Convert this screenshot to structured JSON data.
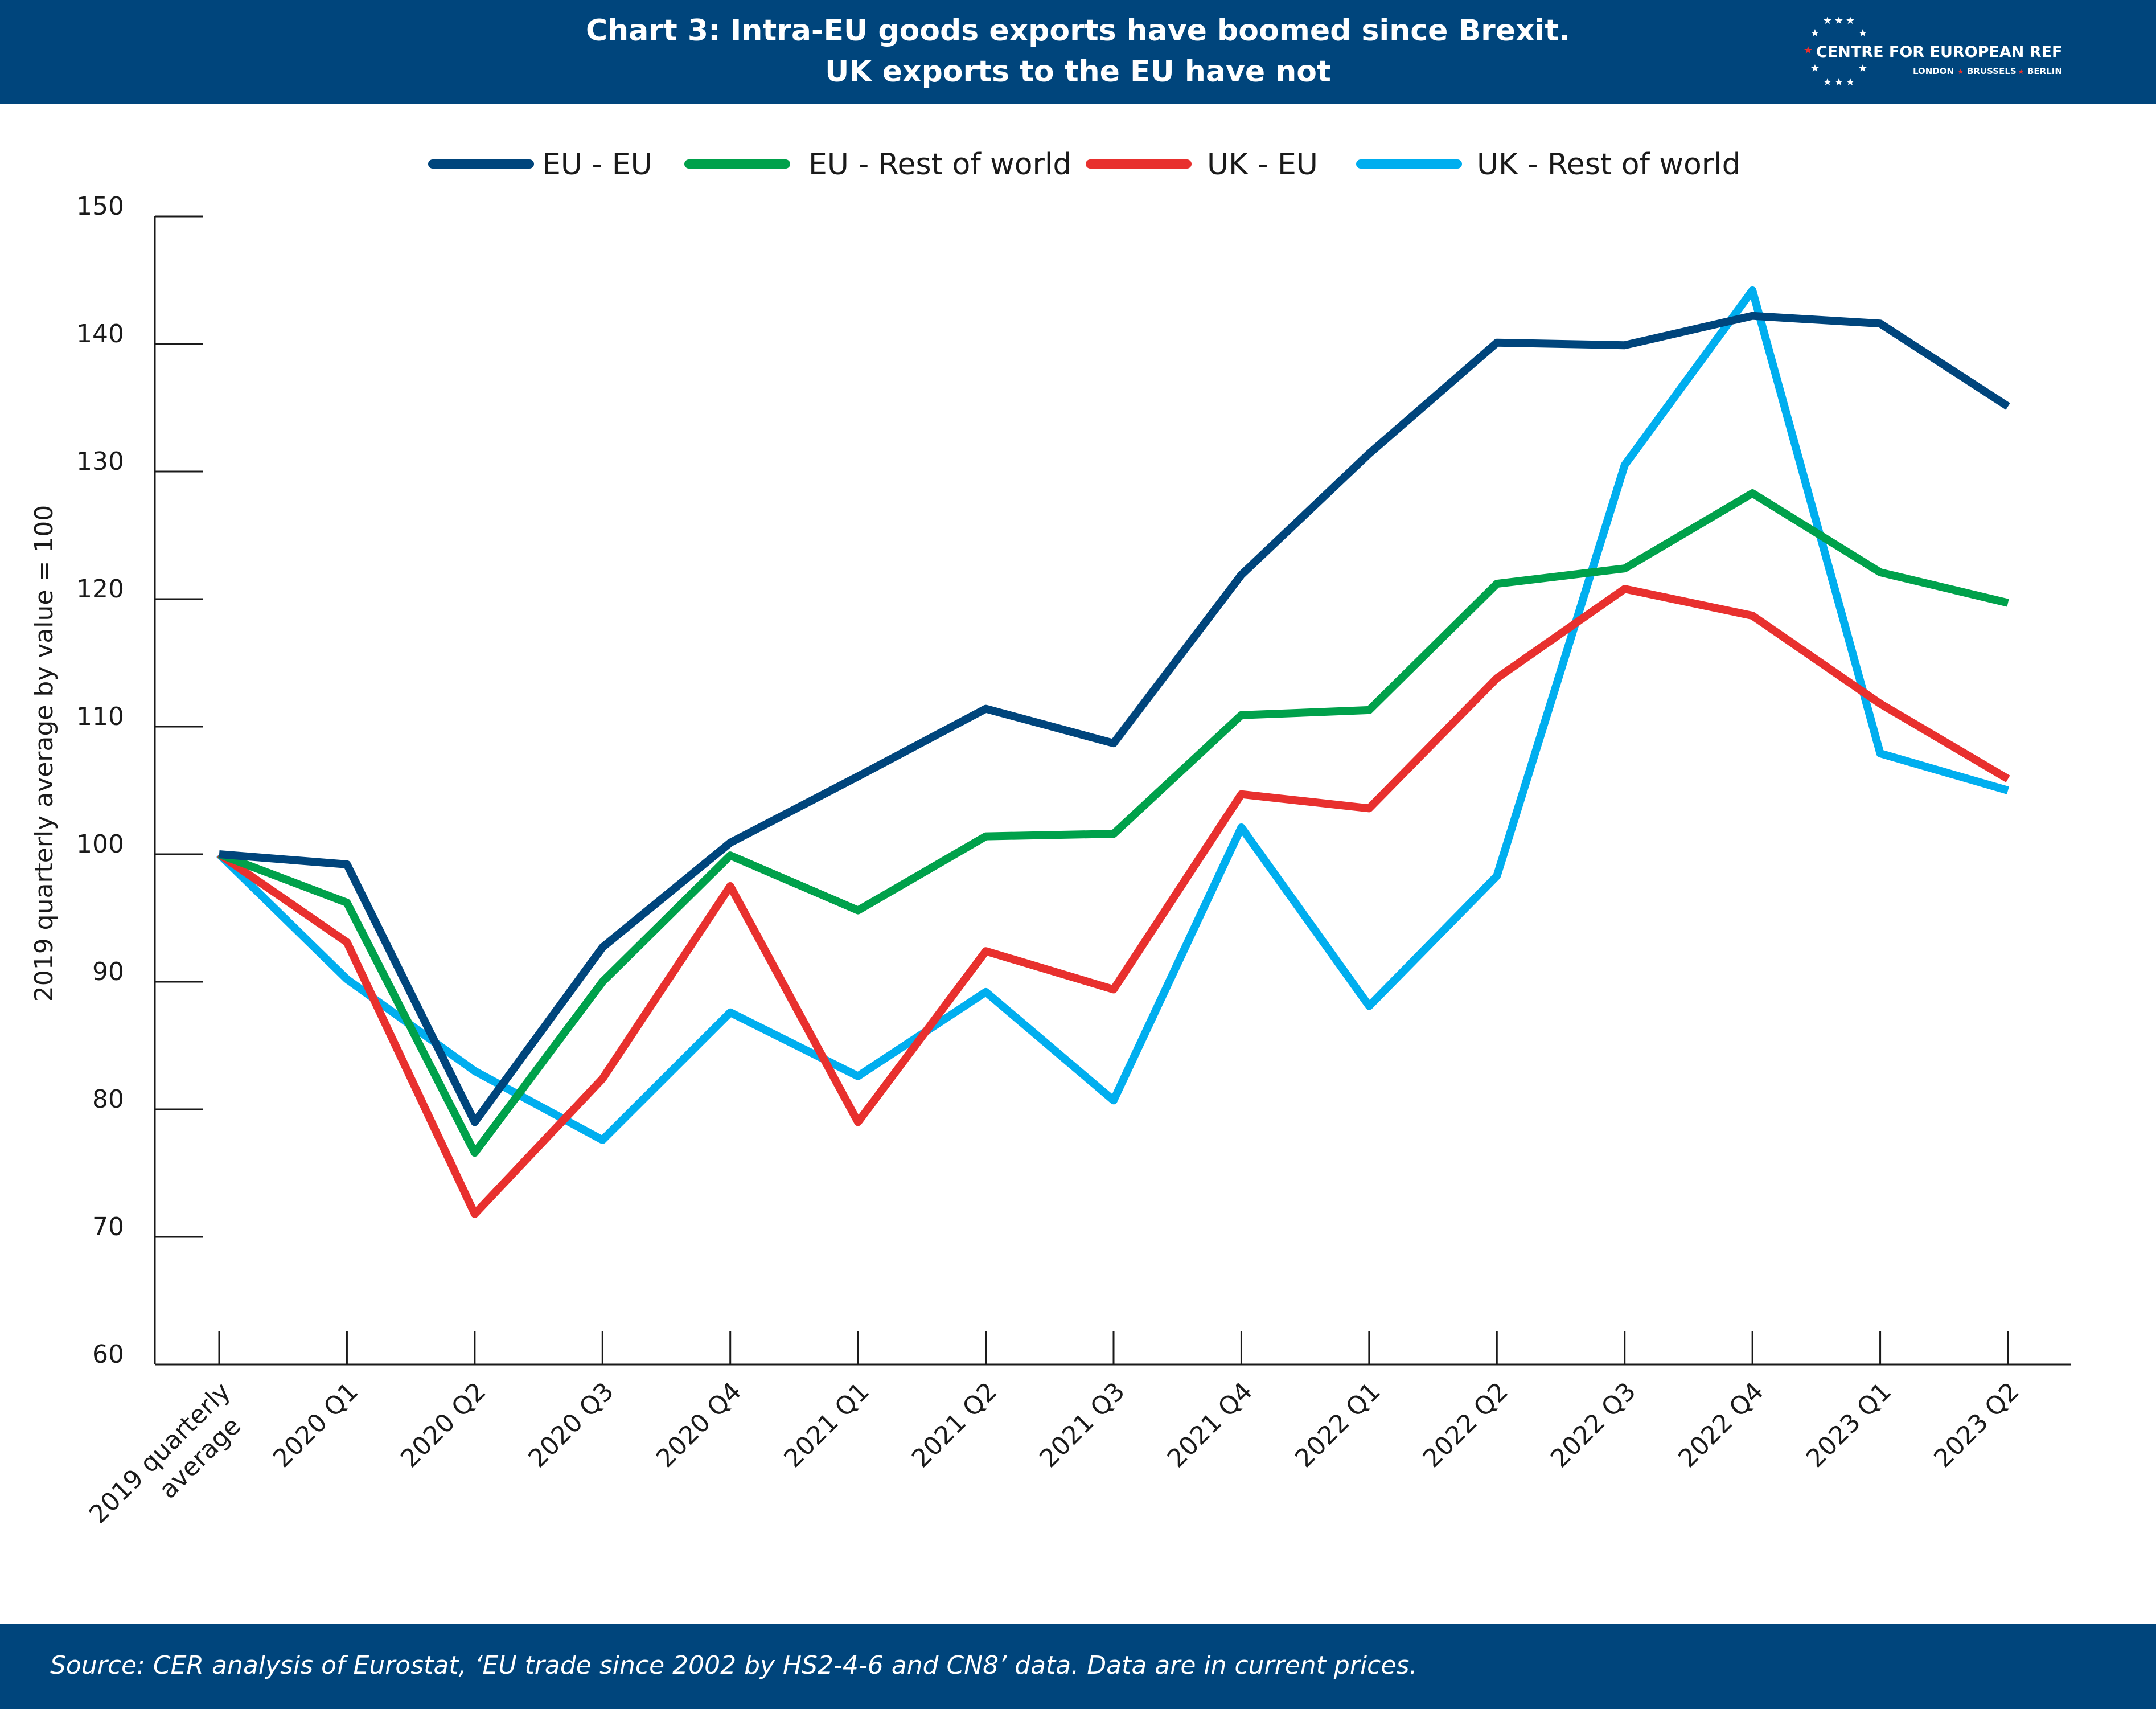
{
  "header": {
    "title_line1": "Chart 3: Intra-EU goods exports have boomed since Brexit.",
    "title_line2": "UK exports to the EU have not",
    "logo_name": "CENTRE FOR EUROPEAN REFORM",
    "logo_cities": [
      "LONDON",
      "BRUSSELS",
      "BERLIN"
    ],
    "color": "#00457c"
  },
  "footer": {
    "source": "Source: CER analysis of Eurostat, ‘EU trade since 2002 by HS2-4-6 and CN8’ data. Data are in current prices."
  },
  "chart_data": {
    "type": "line",
    "title": "Chart 3: Intra-EU goods exports have boomed since Brexit. UK exports to the EU have not",
    "xlabel": "",
    "ylabel": "2019 quarterly average by value = 100",
    "ylim": [
      60,
      150
    ],
    "yticks": [
      60,
      70,
      80,
      90,
      100,
      110,
      120,
      130,
      140,
      150
    ],
    "grid": false,
    "legend_position": "top",
    "categories": [
      "2019 quarterly average",
      "2020 Q1",
      "2020 Q2",
      "2020 Q3",
      "2020 Q4",
      "2021 Q1",
      "2021 Q2",
      "2021 Q3",
      "2021 Q4",
      "2022 Q1",
      "2022 Q2",
      "2022 Q3",
      "2022 Q4",
      "2023 Q1",
      "2023 Q2"
    ],
    "category_lines": [
      [
        "2019 quarterly",
        "average"
      ],
      [
        "2020 Q1"
      ],
      [
        "2020 Q2"
      ],
      [
        "2020 Q3"
      ],
      [
        "2020 Q4"
      ],
      [
        "2021 Q1"
      ],
      [
        "2021 Q2"
      ],
      [
        "2021 Q3"
      ],
      [
        "2021 Q4"
      ],
      [
        "2022 Q1"
      ],
      [
        "2022 Q2"
      ],
      [
        "2022 Q3"
      ],
      [
        "2022 Q4"
      ],
      [
        "2023 Q1"
      ],
      [
        "2023 Q2"
      ]
    ],
    "series": [
      {
        "name": "EU - EU",
        "color": "#00457c",
        "values": [
          100,
          99.2,
          79,
          92.7,
          100.9,
          106.1,
          111.4,
          108.7,
          121.9,
          131.4,
          140.1,
          139.9,
          142.2,
          141.6,
          135.1
        ]
      },
      {
        "name": "EU - Rest of world",
        "color": "#00a14b",
        "values": [
          100,
          96.2,
          76.6,
          90,
          99.9,
          95.6,
          101.4,
          101.6,
          110.9,
          111.3,
          121.2,
          122.4,
          128.3,
          122.1,
          119.7
        ]
      },
      {
        "name": "UK - EU",
        "color": "#e8302e",
        "values": [
          100,
          93.1,
          71.8,
          82.4,
          97.5,
          79,
          92.4,
          89.4,
          104.7,
          103.6,
          113.8,
          120.8,
          118.7,
          111.8,
          105.9
        ]
      },
      {
        "name": "UK - Rest of world",
        "color": "#00aeef",
        "values": [
          100,
          90.2,
          83,
          77.6,
          87.6,
          82.6,
          89.2,
          80.7,
          102.1,
          88.1,
          98.3,
          130.5,
          144.2,
          107.9,
          105
        ]
      }
    ]
  }
}
